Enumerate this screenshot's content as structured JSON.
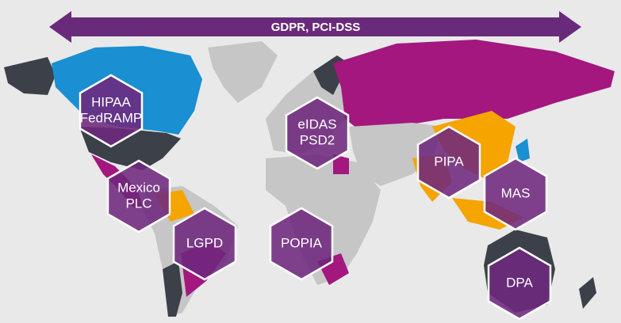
{
  "banner": "GDPR, PCI-DSS",
  "regions": [
    {
      "lines": [
        "HIPAA",
        "FedRAMP"
      ]
    },
    {
      "lines": [
        "eIDAS",
        "PSD2"
      ]
    },
    {
      "lines": [
        "Mexico",
        "PLC"
      ]
    },
    {
      "lines": [
        "LGPD"
      ]
    },
    {
      "lines": [
        "POPIA"
      ]
    },
    {
      "lines": [
        "PIPA"
      ]
    },
    {
      "lines": [
        "MAS"
      ]
    },
    {
      "lines": [
        "DPA"
      ]
    }
  ]
}
